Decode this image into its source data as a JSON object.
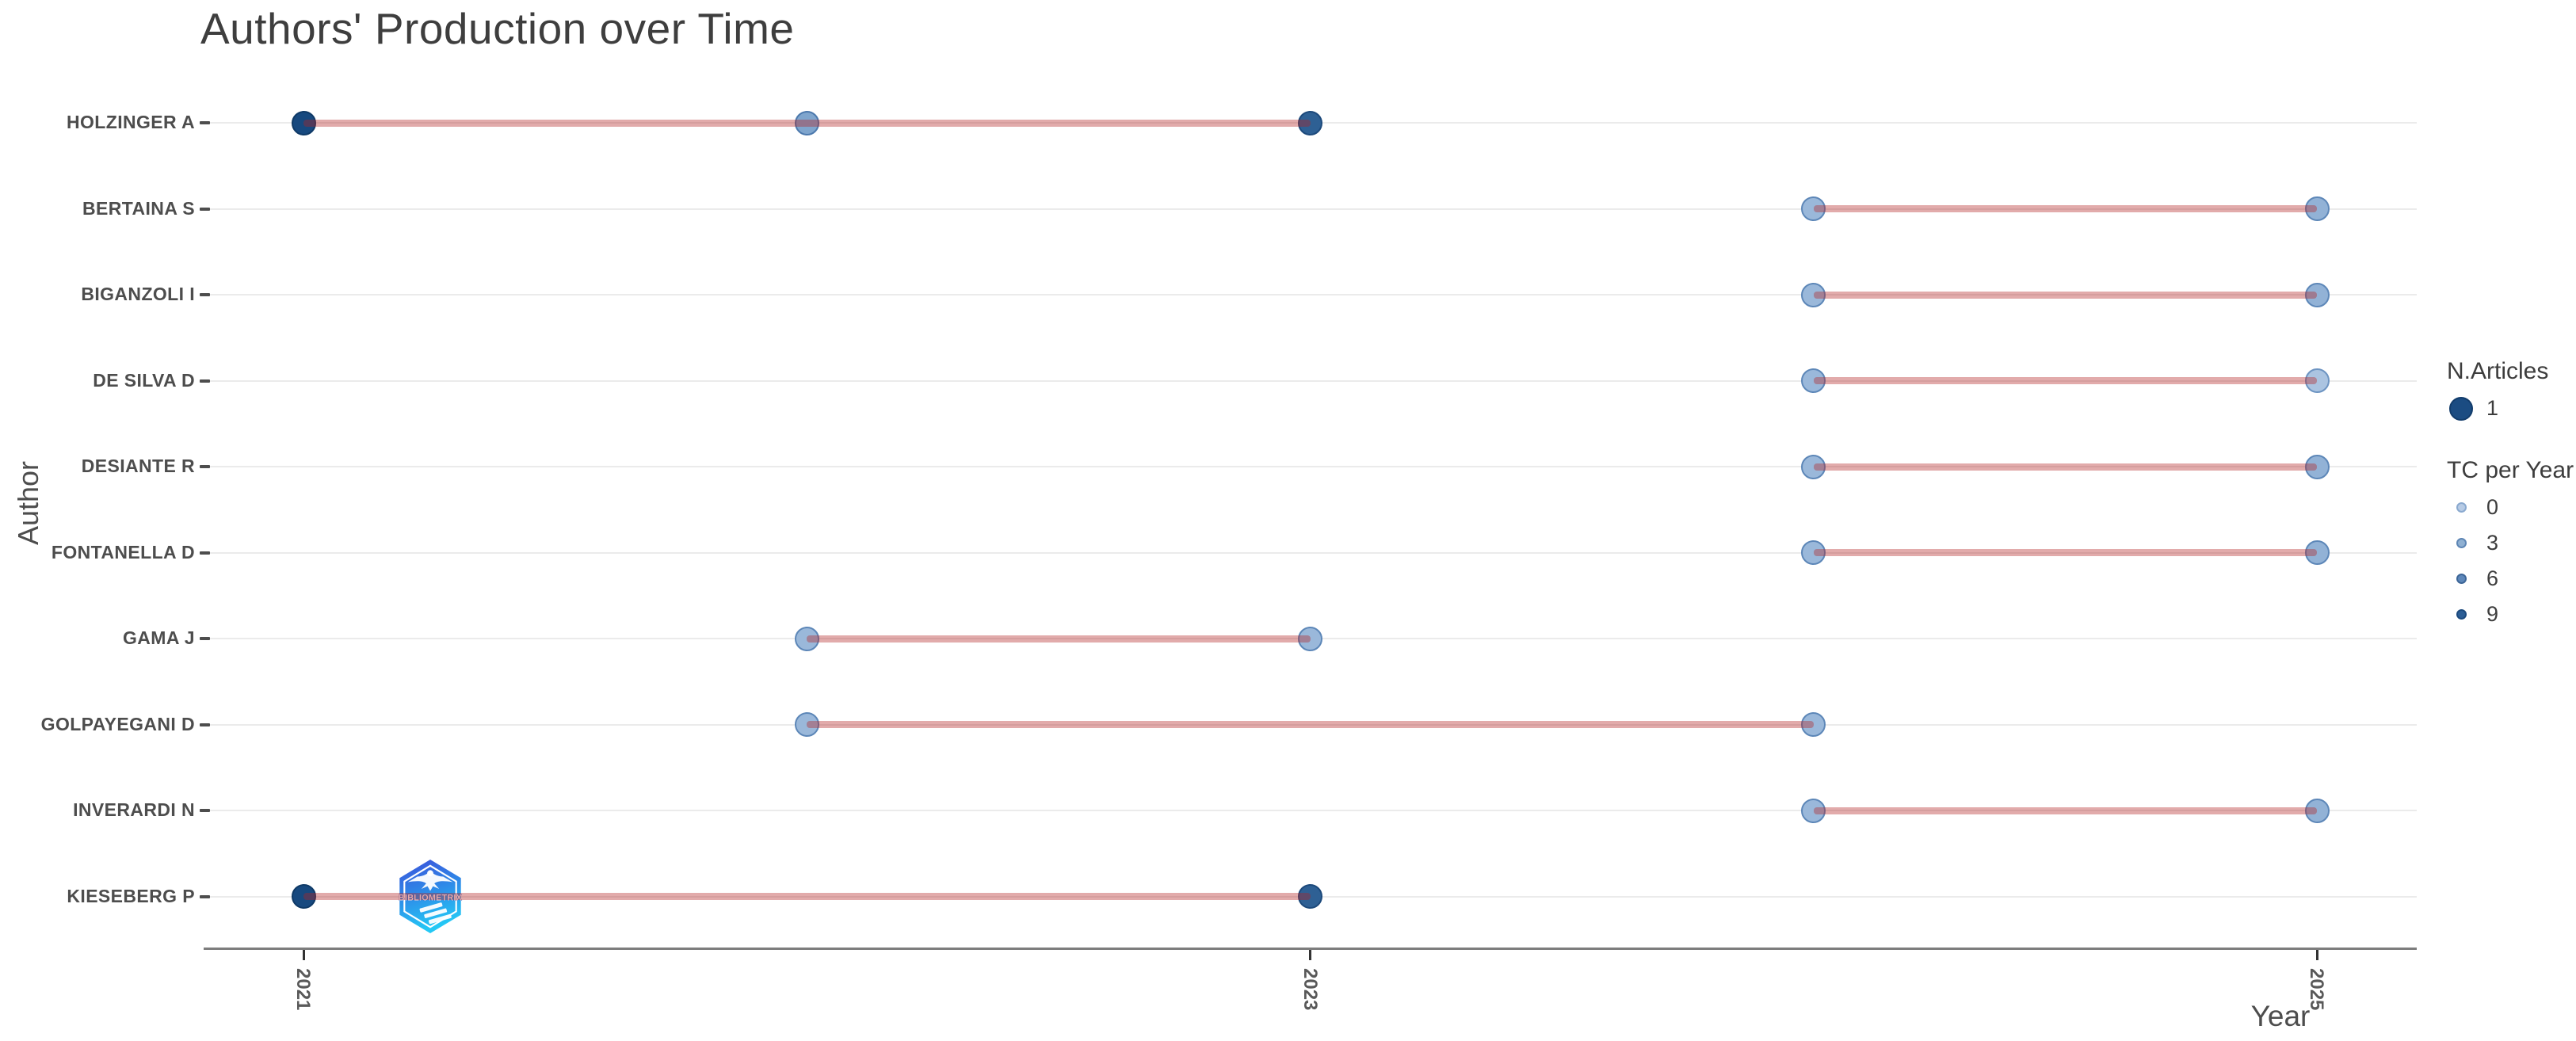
{
  "title": "Authors' Production over Time",
  "axes": {
    "x_label": "Year",
    "y_label": "Author",
    "x_ticks": [
      "2021",
      "2023",
      "2025"
    ]
  },
  "legend": {
    "size_title": "N.Articles",
    "size_items": [
      {
        "label": "1",
        "color": "#1b4c82",
        "stroke": "#123c6b"
      }
    ],
    "color_title": "TC per Year",
    "color_items": [
      {
        "label": "0",
        "color": "#b7cbe5",
        "stroke": "#8aa9cf"
      },
      {
        "label": "3",
        "color": "#8fb0d2",
        "stroke": "#5e86b5"
      },
      {
        "label": "6",
        "color": "#5e88ba",
        "stroke": "#3d6698"
      },
      {
        "label": "9",
        "color": "#2c5e96",
        "stroke": "#1c4a7e"
      }
    ]
  },
  "watermark": {
    "text": "BIBLIOMETRIX"
  },
  "chart_data": {
    "type": "scatter",
    "title": "Authors' Production over Time",
    "xlabel": "Year",
    "ylabel": "Author",
    "x_ticks": [
      2021,
      2023,
      2025
    ],
    "x_range": [
      2020.8,
      2025.2
    ],
    "grid": "horizontal-only",
    "legend_position": "right",
    "size_legend": {
      "title": "N.Articles",
      "values": [
        1
      ]
    },
    "color_legend": {
      "title": "TC per Year",
      "values": [
        0,
        3,
        6,
        9
      ]
    },
    "line_color": "rgba(178,34,34,0.38)",
    "series": [
      {
        "author": "HOLZINGER A",
        "points": [
          {
            "year": 2021,
            "n_articles": 1,
            "tc_per_year": 11,
            "fill": "#17497f",
            "stroke": "#0f3a67"
          },
          {
            "year": 2022,
            "n_articles": 1,
            "tc_per_year": 3,
            "fill": "#7fa5cd",
            "stroke": "#4c79ad"
          },
          {
            "year": 2023,
            "n_articles": 1,
            "tc_per_year": 7,
            "fill": "#2e6094",
            "stroke": "#1d4a7c"
          }
        ]
      },
      {
        "author": "BERTAINA S",
        "points": [
          {
            "year": 2024,
            "n_articles": 1,
            "tc_per_year": 1,
            "fill": "#9ab8da",
            "stroke": "#5d87b8"
          },
          {
            "year": 2025,
            "n_articles": 1,
            "tc_per_year": 1,
            "fill": "#92b2d6",
            "stroke": "#5d87b8"
          }
        ]
      },
      {
        "author": "BIGANZOLI I",
        "points": [
          {
            "year": 2024,
            "n_articles": 1,
            "tc_per_year": 1,
            "fill": "#9ab8da",
            "stroke": "#5d87b8"
          },
          {
            "year": 2025,
            "n_articles": 1,
            "tc_per_year": 1,
            "fill": "#92b2d6",
            "stroke": "#5d87b8"
          }
        ]
      },
      {
        "author": "DE SILVA D",
        "points": [
          {
            "year": 2024,
            "n_articles": 1,
            "tc_per_year": 1,
            "fill": "#9ab8da",
            "stroke": "#5d87b8"
          },
          {
            "year": 2025,
            "n_articles": 1,
            "tc_per_year": 0,
            "fill": "#abc4e1",
            "stroke": "#6d94c2"
          }
        ]
      },
      {
        "author": "DESIANTE R",
        "points": [
          {
            "year": 2024,
            "n_articles": 1,
            "tc_per_year": 1,
            "fill": "#9ab8da",
            "stroke": "#5d87b8"
          },
          {
            "year": 2025,
            "n_articles": 1,
            "tc_per_year": 1,
            "fill": "#92b2d6",
            "stroke": "#5d87b8"
          }
        ]
      },
      {
        "author": "FONTANELLA D",
        "points": [
          {
            "year": 2024,
            "n_articles": 1,
            "tc_per_year": 1,
            "fill": "#9ab8da",
            "stroke": "#5d87b8"
          },
          {
            "year": 2025,
            "n_articles": 1,
            "tc_per_year": 1,
            "fill": "#92b2d6",
            "stroke": "#5d87b8"
          }
        ]
      },
      {
        "author": "GAMA J",
        "points": [
          {
            "year": 2022,
            "n_articles": 1,
            "tc_per_year": 1,
            "fill": "#9ab8da",
            "stroke": "#5d87b8"
          },
          {
            "year": 2023,
            "n_articles": 1,
            "tc_per_year": 1,
            "fill": "#9ab8da",
            "stroke": "#5d87b8"
          }
        ]
      },
      {
        "author": "GOLPAYEGANI D",
        "points": [
          {
            "year": 2022,
            "n_articles": 1,
            "tc_per_year": 1,
            "fill": "#9ab8da",
            "stroke": "#5d87b8"
          },
          {
            "year": 2024,
            "n_articles": 1,
            "tc_per_year": 1,
            "fill": "#9ab8da",
            "stroke": "#5d87b8"
          }
        ]
      },
      {
        "author": "INVERARDI N",
        "points": [
          {
            "year": 2024,
            "n_articles": 1,
            "tc_per_year": 1,
            "fill": "#9ab8da",
            "stroke": "#5d87b8"
          },
          {
            "year": 2025,
            "n_articles": 1,
            "tc_per_year": 1,
            "fill": "#92b2d6",
            "stroke": "#5d87b8"
          }
        ]
      },
      {
        "author": "KIESEBERG P",
        "points": [
          {
            "year": 2021,
            "n_articles": 1,
            "tc_per_year": 11,
            "fill": "#17497f",
            "stroke": "#0f3a67"
          },
          {
            "year": 2023,
            "n_articles": 1,
            "tc_per_year": 7,
            "fill": "#2e6094",
            "stroke": "#1d4a7c"
          }
        ]
      }
    ]
  }
}
